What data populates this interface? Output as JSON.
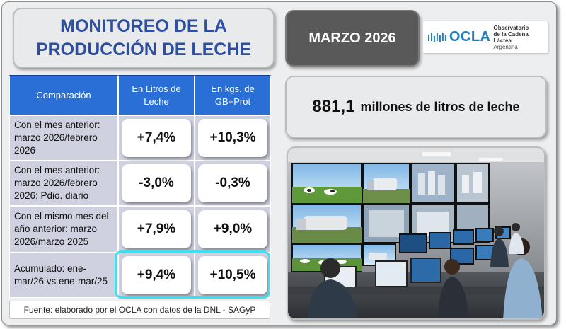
{
  "title": {
    "line1": "MONITOREO DE LA",
    "line2": "PRODUCCIÓN DE LECHE"
  },
  "period": "MARZO 2026",
  "logo": {
    "name": "OCLA",
    "subtitle_line1": "Observatorio",
    "subtitle_line2": "de la Cadena Láctea",
    "country": "Argentina",
    "icon": "ocla-wave-icon",
    "color": "#1f7fc0"
  },
  "headline": {
    "value": "881,1",
    "text": "millones de litros de leche"
  },
  "table": {
    "headers": {
      "comparison": "Comparación",
      "liters": "En Litros de Leche",
      "kgs": "En kgs. de GB+Prot"
    },
    "rows": [
      {
        "label": "Con el mes anterior: marzo 2026/febrero 2026",
        "liters": "+7,4%",
        "kgs": "+10,3%"
      },
      {
        "label": "Con el mes anterior: marzo 2026/febrero 2026: Pdio. diario",
        "liters": "-3,0%",
        "kgs": "-0,3%"
      },
      {
        "label": "Con el mismo mes del año anterior: marzo 2026/marzo 2025",
        "liters": "+7,9%",
        "kgs": "+9,0%"
      },
      {
        "label": "Acumulado: ene-mar/26 vs ene-mar/25",
        "liters": "+9,4%",
        "kgs": "+10,5%"
      }
    ]
  },
  "source": "Fuente: elaborado por el OCLA con datos de la DNL - SAGyP",
  "colors": {
    "title_blue": "#2c4fa0",
    "header_blue": "#2a6fd6",
    "cell_lavender": "#cfd1e0",
    "highlight_cyan": "#3fe0ee",
    "month_gray": "#595959"
  }
}
